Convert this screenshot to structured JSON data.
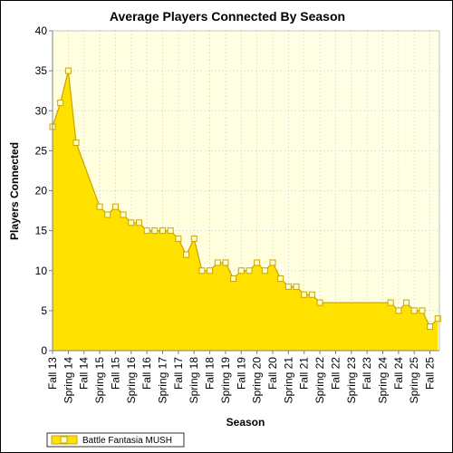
{
  "chart_data": {
    "type": "area",
    "title": "Average Players Connected By Season",
    "xlabel": "Season",
    "ylabel": "Players Connected",
    "ylim": [
      0,
      40
    ],
    "yticks": [
      0,
      5,
      10,
      15,
      20,
      25,
      30,
      35,
      40
    ],
    "categories": [
      "Fall 13",
      "Spring 14",
      "Fall 14",
      "Spring 15",
      "Fall 15",
      "Spring 16",
      "Fall 16",
      "Spring 17",
      "Fall 17",
      "Spring 18",
      "Fall 18",
      "Spring 19",
      "Fall 19",
      "Spring 20",
      "Fall 20",
      "Spring 21",
      "Fall 21",
      "Spring 22",
      "Fall 22",
      "Spring 23",
      "Fall 23",
      "Spring 24",
      "Fall 24",
      "Spring 25",
      "Fall 25"
    ],
    "x_min": 0,
    "x_max": 24.6,
    "grid": true,
    "legend_position": "bottom-left",
    "series": [
      {
        "name": "Battle Fantasia MUSH",
        "color": "#FFE100",
        "line_color": "#CCA300",
        "points": [
          [
            0,
            28
          ],
          [
            0.5,
            31
          ],
          [
            1.0,
            35
          ],
          [
            1.5,
            26
          ],
          [
            3.0,
            18
          ],
          [
            3.5,
            17
          ],
          [
            4.0,
            18
          ],
          [
            4.5,
            17
          ],
          [
            5.0,
            16
          ],
          [
            5.5,
            16
          ],
          [
            6.0,
            15
          ],
          [
            6.5,
            15
          ],
          [
            7.0,
            15
          ],
          [
            7.5,
            15
          ],
          [
            8.0,
            14
          ],
          [
            8.5,
            12
          ],
          [
            9.0,
            14
          ],
          [
            9.5,
            10
          ],
          [
            10.0,
            10
          ],
          [
            10.5,
            11
          ],
          [
            11.0,
            11
          ],
          [
            11.5,
            9
          ],
          [
            12.0,
            10
          ],
          [
            12.5,
            10
          ],
          [
            13.0,
            11
          ],
          [
            13.5,
            10
          ],
          [
            14.0,
            11
          ],
          [
            14.5,
            9
          ],
          [
            15.0,
            8
          ],
          [
            15.5,
            8
          ],
          [
            16.0,
            7
          ],
          [
            16.5,
            7
          ],
          [
            17.0,
            6
          ],
          [
            21.5,
            6
          ],
          [
            22.0,
            5
          ],
          [
            22.5,
            6
          ],
          [
            23.0,
            5
          ],
          [
            23.5,
            5
          ],
          [
            24.0,
            3
          ],
          [
            24.5,
            4
          ]
        ]
      }
    ]
  },
  "colors": {
    "plot_background": "#FFFFE8",
    "gridline": "#BBBBBB"
  }
}
